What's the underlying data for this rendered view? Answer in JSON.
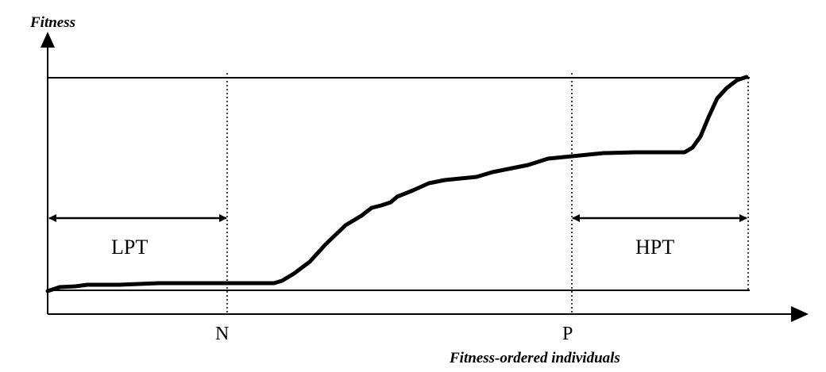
{
  "y_axis_label": "Fitness",
  "x_axis_label": "Fitness-ordered individuals",
  "markers": {
    "n": "N",
    "p": "P"
  },
  "regions": {
    "lpt": "LPT",
    "hpt": "HPT"
  },
  "line_color": "#000000"
}
